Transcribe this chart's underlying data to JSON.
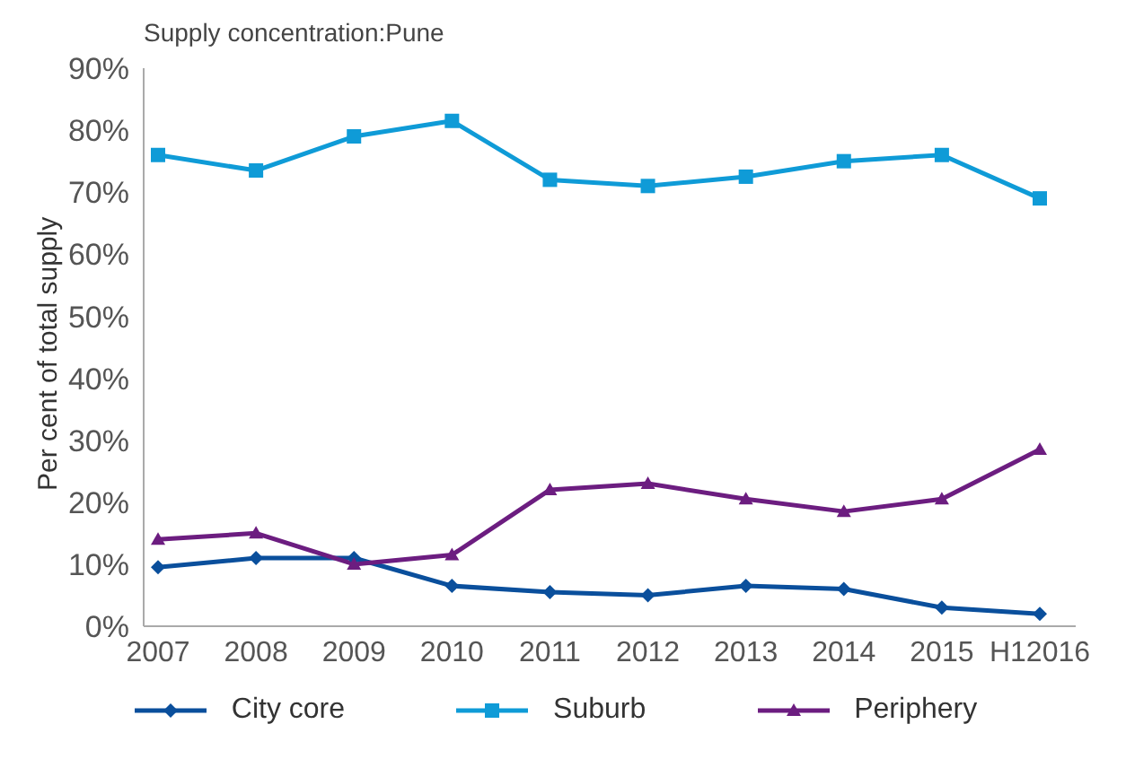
{
  "chart_data": {
    "type": "line",
    "title": "Supply concentration:Pune",
    "ylabel": "Per cent of total supply",
    "categories": [
      "2007",
      "2008",
      "2009",
      "2010",
      "2011",
      "2012",
      "2013",
      "2014",
      "2015",
      "H12016"
    ],
    "series": [
      {
        "name": "City core",
        "color": "#0a4f9c",
        "marker": "diamond",
        "values": [
          9.5,
          11,
          11,
          6.5,
          5.5,
          5,
          6.5,
          6,
          3,
          2
        ]
      },
      {
        "name": "Suburb",
        "color": "#0f9bd7",
        "marker": "square",
        "values": [
          76,
          73.5,
          79,
          81.5,
          72,
          71,
          72.5,
          75,
          76,
          69
        ]
      },
      {
        "name": "Periphery",
        "color": "#6c1d80",
        "marker": "triangle",
        "values": [
          14,
          15,
          10,
          11.5,
          22,
          23,
          20.5,
          18.5,
          20.5,
          28.5
        ]
      }
    ],
    "ylim": [
      0,
      90
    ],
    "yticks": [
      {
        "value": 0,
        "label": "0%"
      },
      {
        "value": 10,
        "label": "10%"
      },
      {
        "value": 20,
        "label": "20%"
      },
      {
        "value": 30,
        "label": "30%"
      },
      {
        "value": 40,
        "label": "40%"
      },
      {
        "value": 50,
        "label": "50%"
      },
      {
        "value": 60,
        "label": "60%"
      },
      {
        "value": 70,
        "label": "70%"
      },
      {
        "value": 80,
        "label": "80%"
      },
      {
        "value": 90,
        "label": "90%"
      }
    ],
    "grid": false,
    "legend": "bottom",
    "line_style": "solid"
  }
}
